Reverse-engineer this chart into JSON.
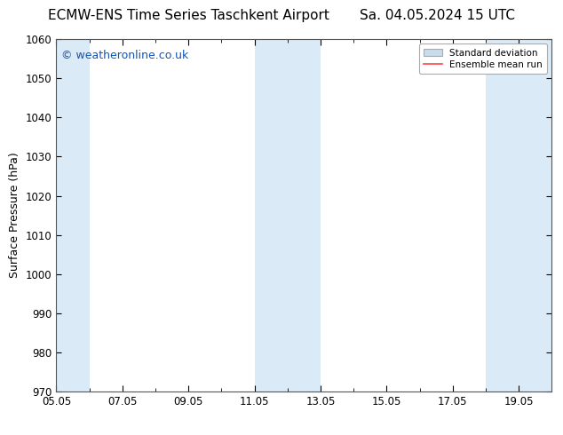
{
  "title": "ECMW-ENS Time Series Taschkent Airport       Sa. 04.05.2024 15 UTC",
  "ylabel": "Surface Pressure (hPa)",
  "ylim": [
    970,
    1060
  ],
  "yticks": [
    970,
    980,
    990,
    1000,
    1010,
    1020,
    1030,
    1040,
    1050,
    1060
  ],
  "xlim": [
    0,
    15
  ],
  "xtick_labels": [
    "05.05",
    "07.05",
    "09.05",
    "11.05",
    "13.05",
    "15.05",
    "17.05",
    "19.05"
  ],
  "xtick_positions": [
    0,
    2,
    4,
    6,
    8,
    10,
    12,
    14
  ],
  "shade_bands": [
    {
      "x_start": 0.0,
      "x_end": 1.0,
      "color": "#daeaf7"
    },
    {
      "x_start": 6.0,
      "x_end": 8.0,
      "color": "#daeaf7"
    },
    {
      "x_start": 13.0,
      "x_end": 15.0,
      "color": "#daeaf7"
    }
  ],
  "watermark_text": "© weatheronline.co.uk",
  "watermark_color": "#1155bb",
  "watermark_fontsize": 9,
  "legend_sd_color": "#c8dcea",
  "legend_sd_edge": "#aaaaaa",
  "legend_mean_color": "#ff4444",
  "bg_color": "#ffffff",
  "title_fontsize": 11,
  "axis_label_fontsize": 9,
  "tick_fontsize": 8.5,
  "spine_color": "#555555"
}
